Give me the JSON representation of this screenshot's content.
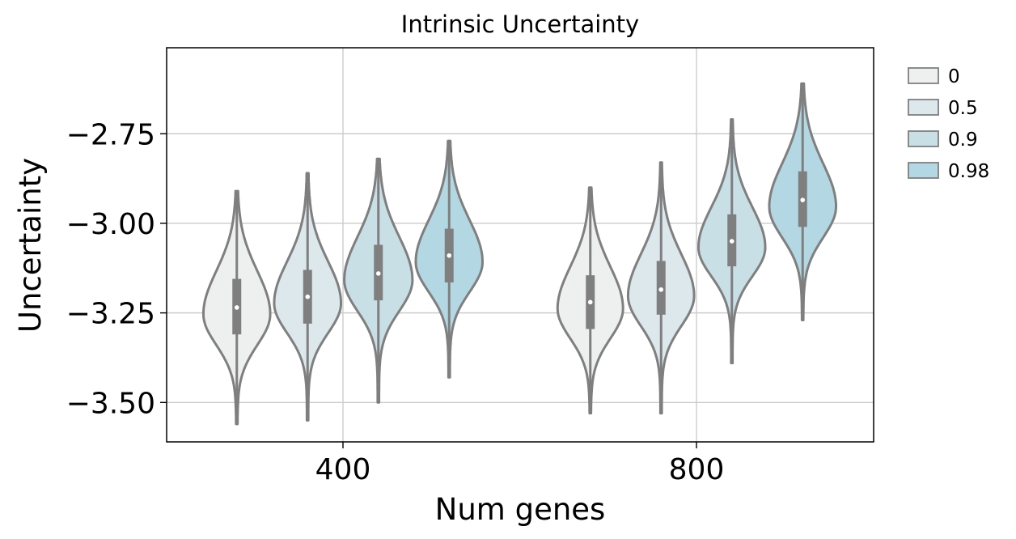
{
  "chart_data": {
    "type": "violin",
    "title": "Intrinsic Uncertainty",
    "xlabel": "Num genes",
    "ylabel": "Uncertainty",
    "categories": [
      "400",
      "800"
    ],
    "ylim": [
      -3.61,
      -2.51
    ],
    "yticks": [
      -2.75,
      -3.0,
      -3.25,
      -3.5
    ],
    "ytick_labels": [
      "−2.75",
      "−3.00",
      "−3.25",
      "−3.50"
    ],
    "grid": true,
    "legend_position": "outside-top-right",
    "series": [
      {
        "name": "0",
        "color": "#eef0ef",
        "stats": [
          {
            "min": -3.56,
            "q1": -3.31,
            "median": -3.235,
            "q3": -3.155,
            "max": -2.91,
            "width_scale": 0.96
          },
          {
            "min": -3.53,
            "q1": -3.295,
            "median": -3.22,
            "q3": -3.145,
            "max": -2.9,
            "width_scale": 0.94
          }
        ]
      },
      {
        "name": "0.5",
        "color": "#dce8ec",
        "stats": [
          {
            "min": -3.55,
            "q1": -3.28,
            "median": -3.205,
            "q3": -3.13,
            "max": -2.86,
            "width_scale": 0.96
          },
          {
            "min": -3.53,
            "q1": -3.255,
            "median": -3.185,
            "q3": -3.105,
            "max": -2.83,
            "width_scale": 0.95
          }
        ]
      },
      {
        "name": "0.9",
        "color": "#c8dfe6",
        "stats": [
          {
            "min": -3.5,
            "q1": -3.215,
            "median": -3.14,
            "q3": -3.06,
            "max": -2.82,
            "width_scale": 0.98
          },
          {
            "min": -3.39,
            "q1": -3.12,
            "median": -3.05,
            "q3": -2.975,
            "max": -2.71,
            "width_scale": 0.96
          }
        ]
      },
      {
        "name": "0.98",
        "color": "#b3d8e4",
        "stats": [
          {
            "min": -3.43,
            "q1": -3.165,
            "median": -3.09,
            "q3": -3.015,
            "max": -2.77,
            "width_scale": 0.96
          },
          {
            "min": -3.27,
            "q1": -3.01,
            "median": -2.935,
            "q3": -2.855,
            "max": -2.61,
            "width_scale": 0.96
          }
        ]
      }
    ]
  }
}
